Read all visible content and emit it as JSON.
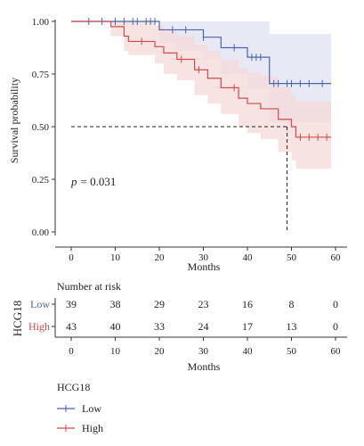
{
  "chart_data": {
    "type": "line",
    "subtype": "kaplan-meier",
    "ylabel": "Survival probability",
    "xlabel": "Months",
    "xlim": [
      0,
      60
    ],
    "ylim": [
      0,
      1
    ],
    "x_ticks": [
      "0",
      "10",
      "20",
      "30",
      "40",
      "50",
      "60"
    ],
    "y_ticks": [
      "0.00",
      "0.25",
      "0.50",
      "0.75",
      "1.00"
    ],
    "annotation": {
      "p_label": "p",
      "p_value": "= 0.031"
    },
    "median_line": {
      "y": 0.5,
      "x": 49
    },
    "series": [
      {
        "name": "Low",
        "color": "#4a64ad",
        "band_color": "#dfe3f1",
        "steps": [
          [
            0,
            1.0
          ],
          [
            20,
            0.96
          ],
          [
            30,
            0.925
          ],
          [
            34,
            0.875
          ],
          [
            40,
            0.83
          ],
          [
            45,
            0.705
          ],
          [
            59,
            0.705
          ]
        ],
        "lower": [
          [
            0,
            1.0
          ],
          [
            17,
            1.0
          ],
          [
            20,
            0.9
          ],
          [
            24,
            0.86
          ],
          [
            30,
            0.82
          ],
          [
            34,
            0.75
          ],
          [
            40,
            0.68
          ],
          [
            45,
            0.52
          ],
          [
            59,
            0.52
          ]
        ],
        "upper": [
          [
            0,
            1.0
          ],
          [
            17,
            1.0
          ],
          [
            20,
            1.0
          ],
          [
            40,
            1.0
          ],
          [
            45,
            0.94
          ],
          [
            59,
            0.94
          ]
        ],
        "censor": [
          4,
          7,
          10,
          12,
          14,
          15,
          17,
          18,
          19,
          23,
          26,
          30,
          37,
          41,
          42,
          43,
          46,
          47,
          49,
          50,
          52,
          54,
          57
        ]
      },
      {
        "name": "High",
        "color": "#d04b4b",
        "band_color": "#f6dada",
        "steps": [
          [
            0,
            1.0
          ],
          [
            9,
            0.975
          ],
          [
            12,
            0.93
          ],
          [
            13,
            0.905
          ],
          [
            19,
            0.88
          ],
          [
            21,
            0.85
          ],
          [
            24,
            0.82
          ],
          [
            28,
            0.77
          ],
          [
            31,
            0.73
          ],
          [
            34,
            0.685
          ],
          [
            38,
            0.635
          ],
          [
            40,
            0.61
          ],
          [
            43,
            0.585
          ],
          [
            47,
            0.535
          ],
          [
            50,
            0.5
          ],
          [
            51,
            0.45
          ],
          [
            59,
            0.45
          ]
        ],
        "lower": [
          [
            0,
            1.0
          ],
          [
            9,
            0.93
          ],
          [
            12,
            0.86
          ],
          [
            13,
            0.84
          ],
          [
            19,
            0.8
          ],
          [
            21,
            0.75
          ],
          [
            24,
            0.72
          ],
          [
            28,
            0.65
          ],
          [
            31,
            0.61
          ],
          [
            34,
            0.56
          ],
          [
            38,
            0.5
          ],
          [
            40,
            0.47
          ],
          [
            43,
            0.44
          ],
          [
            47,
            0.38
          ],
          [
            50,
            0.34
          ],
          [
            51,
            0.3
          ],
          [
            59,
            0.3
          ]
        ],
        "upper": [
          [
            0,
            1.0
          ],
          [
            9,
            1.0
          ],
          [
            12,
            1.0
          ],
          [
            19,
            0.98
          ],
          [
            21,
            0.96
          ],
          [
            24,
            0.93
          ],
          [
            28,
            0.89
          ],
          [
            31,
            0.86
          ],
          [
            34,
            0.82
          ],
          [
            38,
            0.78
          ],
          [
            40,
            0.76
          ],
          [
            43,
            0.74
          ],
          [
            47,
            0.69
          ],
          [
            50,
            0.65
          ],
          [
            51,
            0.62
          ],
          [
            59,
            0.62
          ]
        ],
        "censor": [
          16,
          25,
          29,
          37,
          52,
          54,
          56,
          58
        ]
      }
    ]
  },
  "risk_table": {
    "title": "Number at risk",
    "strata_label": "HCG18",
    "xlabel": "Months",
    "rows": [
      {
        "label": "Low",
        "color": "#4a64ad",
        "values": [
          "39",
          "38",
          "29",
          "23",
          "16",
          "8",
          "0"
        ]
      },
      {
        "label": "High",
        "color": "#d04b4b",
        "values": [
          "43",
          "40",
          "33",
          "24",
          "17",
          "13",
          "0"
        ]
      }
    ]
  },
  "legend": {
    "title": "HCG18",
    "items": [
      {
        "label": "Low",
        "color": "#4a64ad"
      },
      {
        "label": "High",
        "color": "#d04b4b"
      }
    ]
  }
}
